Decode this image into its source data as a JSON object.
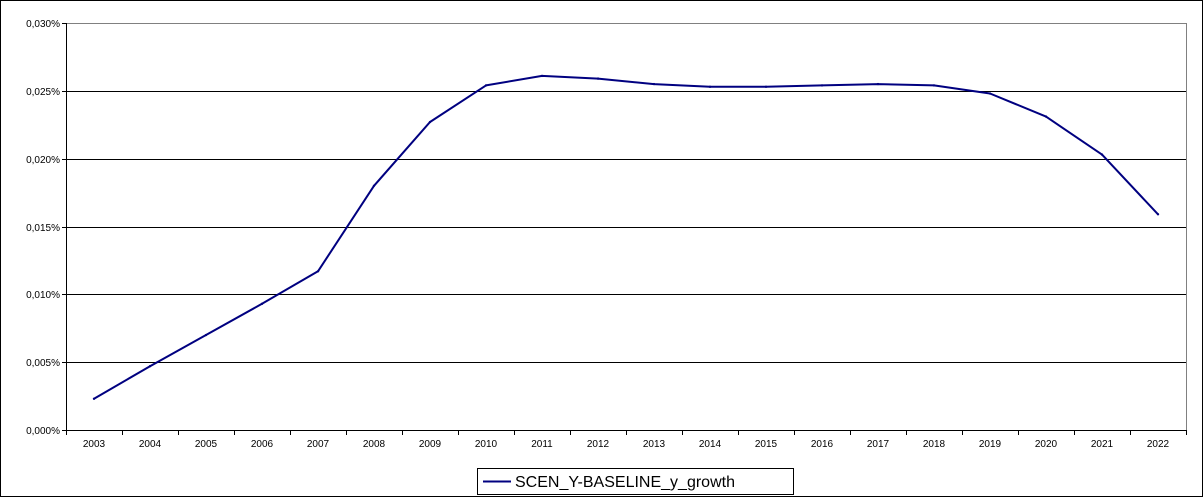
{
  "chart_data": {
    "type": "line",
    "title": "",
    "xlabel": "",
    "ylabel": "",
    "categories": [
      "2003",
      "2004",
      "2005",
      "2006",
      "2007",
      "2008",
      "2009",
      "2010",
      "2011",
      "2012",
      "2013",
      "2014",
      "2015",
      "2016",
      "2017",
      "2018",
      "2019",
      "2020",
      "2021",
      "2022"
    ],
    "ylim": [
      0,
      0.03
    ],
    "yticks": [
      0,
      0.005,
      0.01,
      0.015,
      0.02,
      0.025,
      0.03
    ],
    "ytick_labels": [
      "0,000%",
      "0,005%",
      "0,010%",
      "0,015%",
      "0,020%",
      "0,025%",
      "0,030%"
    ],
    "grid": "horizontal",
    "legend_position": "bottom-center",
    "series": [
      {
        "name": "SCEN_Y-BASELINE_y_growth",
        "color": "#000080",
        "values": [
          0.0023,
          0.0047,
          0.007,
          0.0093,
          0.0117,
          0.018,
          0.0227,
          0.0254,
          0.0261,
          0.0259,
          0.0255,
          0.0253,
          0.0253,
          0.0254,
          0.0255,
          0.0254,
          0.0248,
          0.0231,
          0.0203,
          0.0159
        ]
      }
    ]
  }
}
